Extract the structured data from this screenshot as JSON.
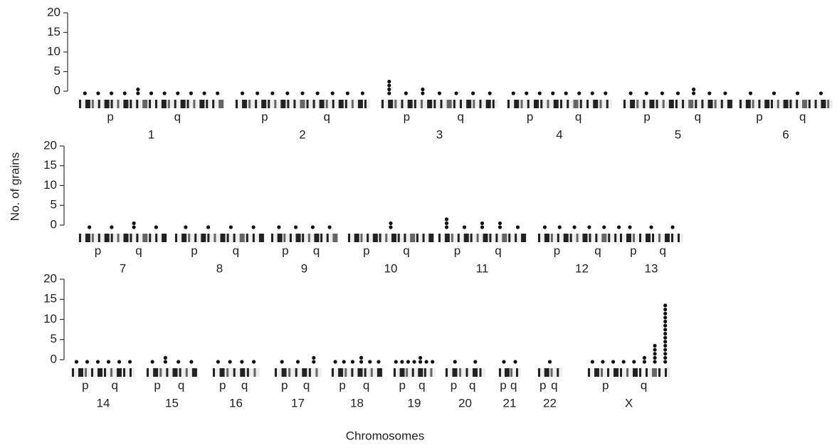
{
  "chart_data": {
    "type": "dot-stack",
    "ylabel": "No. of grains",
    "xlabel": "Chromosomes",
    "ylim": [
      0,
      20
    ],
    "yticks": [
      0,
      5,
      10,
      15,
      20
    ],
    "color": "#111111",
    "rows": [
      [
        {
          "name": "1",
          "arms": [
            "p",
            "q"
          ],
          "grains": [
            1,
            1,
            1,
            1,
            2,
            1,
            1,
            1,
            1,
            1,
            1
          ]
        },
        {
          "name": "2",
          "arms": [
            "p",
            "q"
          ],
          "grains": [
            1,
            1,
            1,
            1,
            1,
            1,
            1,
            1,
            1
          ]
        },
        {
          "name": "3",
          "arms": [
            "p",
            "q"
          ],
          "grains": [
            4,
            1,
            2,
            1,
            1,
            1,
            1
          ]
        },
        {
          "name": "4",
          "arms": [
            "p",
            "q"
          ],
          "grains": [
            1,
            1,
            1,
            1,
            1,
            1,
            1,
            1
          ]
        },
        {
          "name": "5",
          "arms": [
            "p",
            "q"
          ],
          "grains": [
            1,
            1,
            1,
            1,
            2,
            1,
            1
          ]
        },
        {
          "name": "6",
          "arms": [
            "p",
            "q"
          ],
          "grains": [
            1,
            1,
            1,
            1
          ]
        }
      ],
      [
        {
          "name": "7",
          "arms": [
            "p",
            "q"
          ],
          "grains": [
            1,
            1,
            2,
            1
          ]
        },
        {
          "name": "8",
          "arms": [
            "p",
            "q"
          ],
          "grains": [
            1,
            1,
            1,
            1
          ]
        },
        {
          "name": "9",
          "arms": [
            "p",
            "q"
          ],
          "grains": [
            1,
            1,
            1,
            1
          ]
        },
        {
          "name": "10",
          "arms": [
            "p",
            "q"
          ],
          "grains": [
            2
          ]
        },
        {
          "name": "11",
          "arms": [
            "p",
            "q"
          ],
          "grains": [
            3,
            1,
            2,
            2,
            1
          ]
        },
        {
          "name": "12",
          "arms": [
            "p",
            "q"
          ],
          "grains": [
            1,
            1,
            1,
            1,
            1,
            1
          ]
        },
        {
          "name": "13",
          "arms": [
            "p",
            "q"
          ],
          "grains": [
            1,
            1,
            1
          ]
        }
      ],
      [
        {
          "name": "14",
          "arms": [
            "p",
            "q"
          ],
          "grains": [
            1,
            1,
            1,
            1,
            1,
            1
          ]
        },
        {
          "name": "15",
          "arms": [
            "p",
            "q"
          ],
          "grains": [
            1,
            2,
            1,
            1
          ]
        },
        {
          "name": "16",
          "arms": [
            "p",
            "q"
          ],
          "grains": [
            1,
            1,
            1,
            1
          ]
        },
        {
          "name": "17",
          "arms": [
            "p",
            "q"
          ],
          "grains": [
            1,
            1,
            2
          ]
        },
        {
          "name": "18",
          "arms": [
            "p",
            "q"
          ],
          "grains": [
            1,
            1,
            1,
            2,
            1,
            1
          ]
        },
        {
          "name": "19",
          "arms": [
            "p",
            "q"
          ],
          "grains": [
            1,
            1,
            1,
            1,
            2,
            1,
            1
          ]
        },
        {
          "name": "20",
          "arms": [
            "p",
            "q"
          ],
          "grains": [
            1,
            1
          ]
        },
        {
          "name": "21",
          "arms": [
            "p",
            "q"
          ],
          "grains": [
            1,
            1
          ]
        },
        {
          "name": "22",
          "arms": [
            "p",
            "q"
          ],
          "grains": [
            1
          ]
        },
        {
          "name": "X",
          "arms": [
            "p",
            "q"
          ],
          "grains": [
            1,
            1,
            1,
            1,
            1,
            2,
            5,
            15
          ]
        }
      ]
    ]
  }
}
